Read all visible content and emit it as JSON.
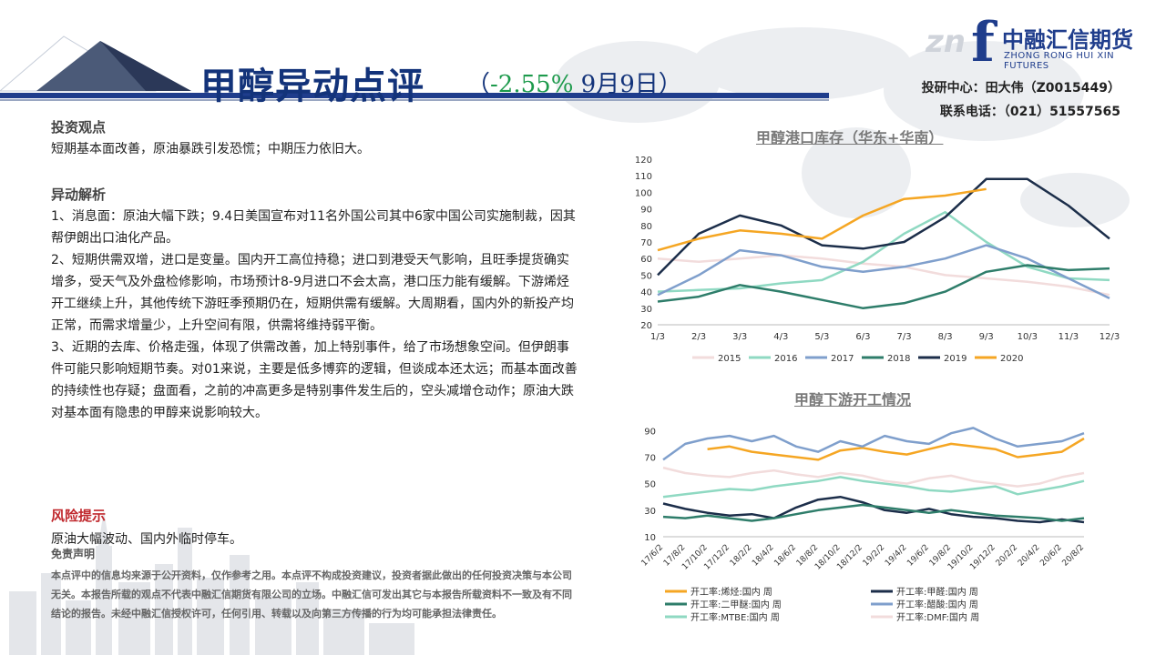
{
  "header": {
    "title": "甲醇异动点评",
    "subtitle_open": "（",
    "subtitle_pct": "-2.55%",
    "subtitle_date": " 9月9日）",
    "author_line": "投研中心：田大伟（Z0015449）",
    "phone_line": "联系电话：（021）51557565"
  },
  "logo": {
    "mark": "f",
    "ghost": "zn",
    "name_cn": "中融汇信期货",
    "name_en": "ZHONG RONG HUI XIN FUTURES"
  },
  "content": {
    "view_heading": "投资观点",
    "view_text": "短期基本面改善，原油暴跌引发恐慌；中期压力依旧大。",
    "analysis_heading": "异动解析",
    "analysis_items": [
      "1、消息面：原油大幅下跌；9.4日美国宣布对11名外国公司其中6家中国公司实施制裁，因其帮伊朗出口油化产品。",
      "2、短期供需双增，进口是变量。国内开工高位持稳；进口到港受天气影响，且旺季提货确实增多，受天气及外盘检修影响，市场预计8-9月进口不会太高，港口压力能有缓解。下游烯烃开工继续上升，其他传统下游旺季预期仍在，短期供需有缓解。大周期看，国内外的新投产均正常，而需求增量少，上升空间有限，供需将维持弱平衡。",
      "3、近期的去库、价格走强，体现了供需改善，加上特别事件，给了市场想象空间。但伊朗事件可能只影响短期节奏。对01来说，主要是低多博弈的逻辑，但谈成本还太远；而基本面改善的持续性也存疑；盘面看，之前的冲高更多是特别事件发生后的，空头减增仓动作；原油大跌对基本面有隐患的甲醇来说影响较大。"
    ],
    "risk_heading": "风险提示",
    "risk_text": "原油大幅波动、国内外临时停车。",
    "disclaimer_heading": "免责声明",
    "disclaimer_text": "本点评中的信息均来源于公开资料，仅作参考之用。本点评不构成投资建议，投资者据此做出的任何投资决策与本公司无关。本报告所载的观点不代表中融汇信期货有限公司的立场。中融汇信可发出其它与本报告所载资料不一致及有不同结论的报告。未经中融汇信授权许可，任何引用、转载以及向第三方传播的行为均可能承担法律责任。"
  },
  "colors": {
    "brand": "#1f3d8c",
    "title": "#13337a",
    "pct": "#1d9a4c",
    "risk": "#c0282d"
  },
  "chart_data": [
    {
      "type": "line",
      "title": "甲醇港口库存（华东+华南）",
      "categories": [
        "1/3",
        "2/3",
        "3/3",
        "4/3",
        "5/3",
        "6/3",
        "7/3",
        "8/3",
        "9/3",
        "10/3",
        "11/3",
        "12/3"
      ],
      "yticks": [
        20,
        30,
        40,
        50,
        60,
        70,
        80,
        90,
        100,
        110,
        120
      ],
      "ylim": [
        20,
        120
      ],
      "series": [
        {
          "name": "2015",
          "color": "#f2dcdc",
          "values": [
            60,
            58,
            60,
            62,
            60,
            57,
            55,
            50,
            48,
            46,
            43,
            38
          ]
        },
        {
          "name": "2016",
          "color": "#8fd9c2",
          "values": [
            40,
            41,
            42,
            45,
            47,
            58,
            75,
            88,
            70,
            55,
            48,
            47
          ]
        },
        {
          "name": "2017",
          "color": "#7f9fcc",
          "values": [
            38,
            50,
            65,
            62,
            55,
            52,
            55,
            60,
            68,
            60,
            48,
            36
          ]
        },
        {
          "name": "2018",
          "color": "#2e7d6a",
          "values": [
            34,
            37,
            44,
            40,
            35,
            30,
            33,
            40,
            52,
            56,
            53,
            54
          ]
        },
        {
          "name": "2019",
          "color": "#1c2e4a",
          "values": [
            50,
            75,
            86,
            80,
            68,
            66,
            70,
            85,
            108,
            108,
            92,
            72
          ]
        },
        {
          "name": "2020",
          "color": "#f5a623",
          "values": [
            65,
            72,
            77,
            75,
            72,
            86,
            96,
            98,
            102,
            null,
            null,
            null
          ]
        }
      ]
    },
    {
      "type": "line",
      "title": "甲醇下游开工情况",
      "categories": [
        "17/6/2",
        "17/8/2",
        "17/10/2",
        "17/12/2",
        "18/2/2",
        "18/4/2",
        "18/6/2",
        "18/8/2",
        "18/10/2",
        "18/12/2",
        "19/2/2",
        "19/4/2",
        "19/6/2",
        "19/8/2",
        "19/10/2",
        "19/12/2",
        "20/2/2",
        "20/4/2",
        "20/6/2",
        "20/8/2"
      ],
      "yticks": [
        10,
        30,
        50,
        70,
        90
      ],
      "ylim": [
        10,
        95
      ],
      "series": [
        {
          "name": "开工率:烯烃:国内 周",
          "color": "#f5a623",
          "values": [
            null,
            null,
            76,
            78,
            74,
            72,
            70,
            68,
            75,
            77,
            74,
            72,
            76,
            80,
            78,
            76,
            70,
            72,
            74,
            84
          ]
        },
        {
          "name": "开工率:甲醛:国内 周",
          "color": "#1c2e4a",
          "values": [
            35,
            31,
            28,
            26,
            27,
            24,
            32,
            38,
            40,
            36,
            30,
            28,
            31,
            27,
            25,
            24,
            22,
            21,
            23,
            21
          ]
        },
        {
          "name": "开工率:二甲醚:国内 周",
          "color": "#2e7d6a",
          "values": [
            25,
            24,
            26,
            24,
            22,
            24,
            27,
            30,
            32,
            34,
            32,
            30,
            28,
            30,
            28,
            26,
            25,
            24,
            22,
            24
          ]
        },
        {
          "name": "开工率:醋酸:国内 周",
          "color": "#7f9fcc",
          "values": [
            68,
            80,
            84,
            86,
            82,
            86,
            78,
            74,
            82,
            78,
            86,
            82,
            80,
            88,
            92,
            84,
            78,
            80,
            82,
            88
          ]
        },
        {
          "name": "开工率:MTBE:国内 周",
          "color": "#8fd9c2",
          "values": [
            40,
            42,
            44,
            46,
            45,
            48,
            50,
            52,
            55,
            52,
            50,
            48,
            45,
            44,
            46,
            48,
            42,
            45,
            48,
            52
          ]
        },
        {
          "name": "开工率:DMF:国内 周",
          "color": "#f2dcdc",
          "values": [
            62,
            58,
            56,
            55,
            58,
            60,
            57,
            55,
            58,
            56,
            52,
            50,
            54,
            56,
            52,
            50,
            48,
            50,
            55,
            58
          ]
        }
      ]
    }
  ]
}
